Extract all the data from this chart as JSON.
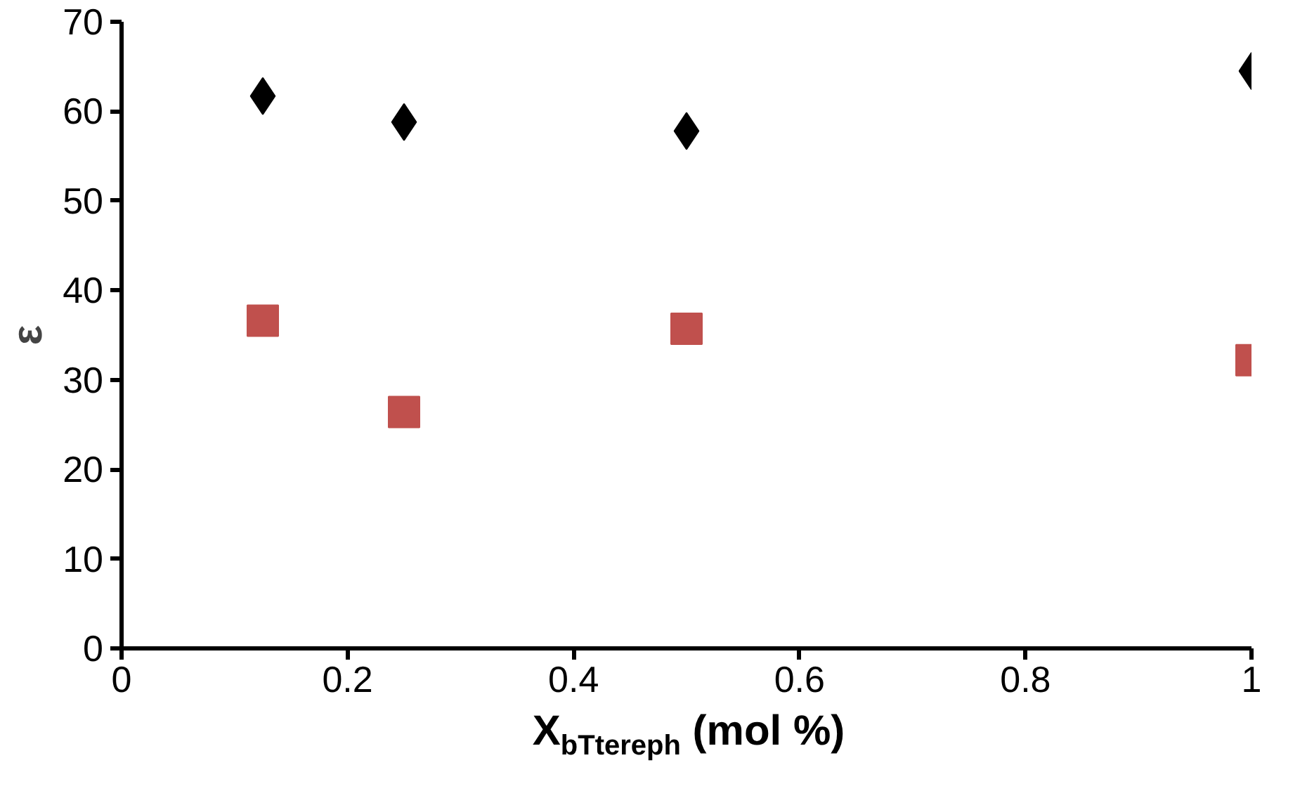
{
  "chart_data": {
    "type": "scatter",
    "xlabel": "X$_{bTtereph}$ (mol %)",
    "ylabel": "ε",
    "xlim": [
      0,
      1
    ],
    "xticks": [
      0,
      0.2,
      0.4,
      0.6,
      0.8,
      1
    ],
    "ylim": [
      0,
      70
    ],
    "yticks": [
      0,
      10,
      20,
      30,
      40,
      50,
      60,
      70
    ],
    "grid": false,
    "x": [
      0.125,
      0.25,
      0.5,
      1.0
    ],
    "series": [
      {
        "color": "#000000",
        "marker": "diamond",
        "values": [
          61.7,
          58.8,
          57.8,
          64.5
        ]
      },
      {
        "color": "#c0504d",
        "marker": "square",
        "values": [
          36.6,
          26.4,
          35.7,
          32.2
        ]
      }
    ]
  }
}
